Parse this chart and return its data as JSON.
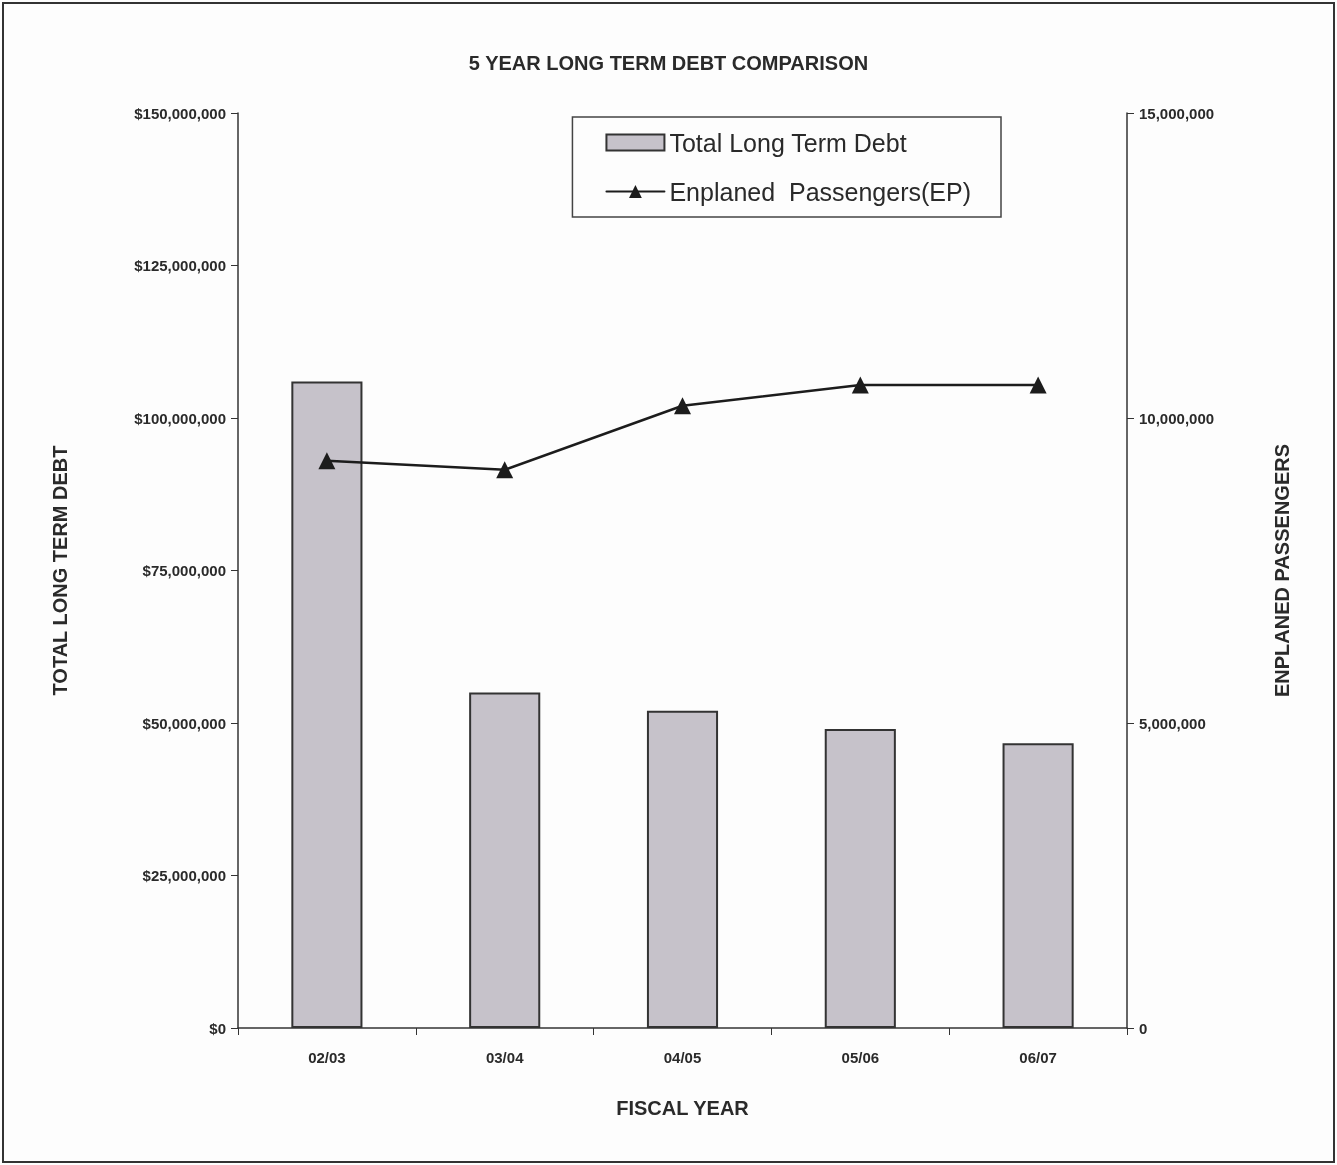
{
  "chart_data": {
    "type": "bar",
    "title": "5 YEAR LONG TERM DEBT COMPARISON",
    "xlabel": "FISCAL YEAR",
    "ylabel": "TOTAL LONG TERM DEBT",
    "y2label": "ENPLANED PASSENGERS",
    "categories": [
      "02/03",
      "03/04",
      "04/05",
      "05/06",
      "06/07"
    ],
    "series": [
      {
        "name": "Total Long Term Debt",
        "color": "#c6c2ca",
        "values": [
          106000000,
          55000000,
          52000000,
          49000000,
          46700000
        ]
      },
      {
        "name": "Enplaned  Passengers(EP)",
        "type": "line",
        "axis": "y2",
        "color": "#1c1c1c",
        "marker": "triangle",
        "line_style": "solid",
        "values": [
          9300000,
          9150000,
          10200000,
          10540000,
          10540000
        ]
      }
    ],
    "ylim": [
      0,
      150000000
    ],
    "yticks": [
      {
        "value": 0,
        "label": "$0"
      },
      {
        "value": 25000000,
        "label": "$25,000,000"
      },
      {
        "value": 50000000,
        "label": "$50,000,000"
      },
      {
        "value": 75000000,
        "label": "$75,000,000"
      },
      {
        "value": 100000000,
        "label": "$100,000,000"
      },
      {
        "value": 125000000,
        "label": "$125,000,000"
      },
      {
        "value": 150000000,
        "label": "$150,000,000"
      }
    ],
    "y2lim": [
      0,
      15000000
    ],
    "y2ticks": [
      0,
      {
        "value": 5000000,
        "label": "5,000,000"
      },
      {
        "value": 10000000,
        "label": "10,000,000"
      },
      {
        "value": 15000000,
        "label": "15,000,000"
      }
    ],
    "legend": "top right"
  }
}
